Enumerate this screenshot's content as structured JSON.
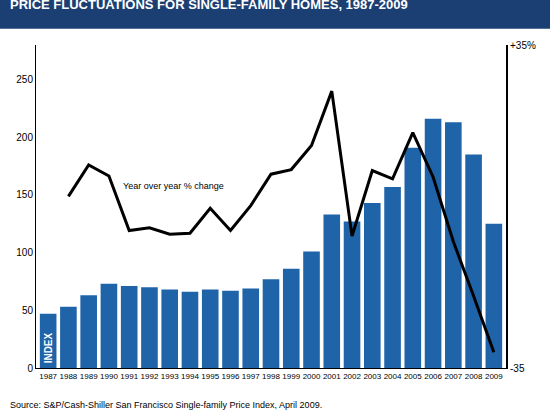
{
  "chart_data": {
    "type": "bar",
    "title": "PRICE FLUCTUATIONS FOR SINGLE-FAMILY HOMES, 1987-2009",
    "source": "Source: S&P/Cash-Shiller San Francisco Single-family Price Index, April 2009.",
    "categories": [
      "1987",
      "1988",
      "1989",
      "1990",
      "1991",
      "1992",
      "1993",
      "1994",
      "1995",
      "1996",
      "1997",
      "1998",
      "1999",
      "2000",
      "2001",
      "2002",
      "2003",
      "2004",
      "2005",
      "2006",
      "2007",
      "2008",
      "2009"
    ],
    "series": [
      {
        "name": "INDEX",
        "type": "bar",
        "color": "#1f63a8",
        "values": [
          47,
          53,
          63,
          73,
          71,
          70,
          68,
          66,
          68,
          67,
          69,
          77,
          86,
          101,
          133,
          127,
          143,
          157,
          191,
          216,
          213,
          185,
          125
        ]
      },
      {
        "name": "Year over year % change",
        "type": "line",
        "color": "#000000",
        "axis": "y2",
        "values": [
          null,
          2.2,
          9,
          6.6,
          -5.2,
          -4.6,
          -6,
          -5.8,
          -0.4,
          -5.2,
          0.2,
          7,
          8,
          13.2,
          25,
          -6.4,
          7.8,
          6,
          16,
          6.4,
          -7.6,
          -19.4,
          -31.6
        ]
      }
    ],
    "ylim": [
      0,
      280
    ],
    "yticks": [
      0,
      50,
      100,
      150,
      200,
      250
    ],
    "y2lim": [
      -35,
      35
    ],
    "y2ticks": [
      {
        "value": 35,
        "label": "+35%"
      },
      {
        "value": -35,
        "label": "-35"
      }
    ],
    "grid": false
  }
}
